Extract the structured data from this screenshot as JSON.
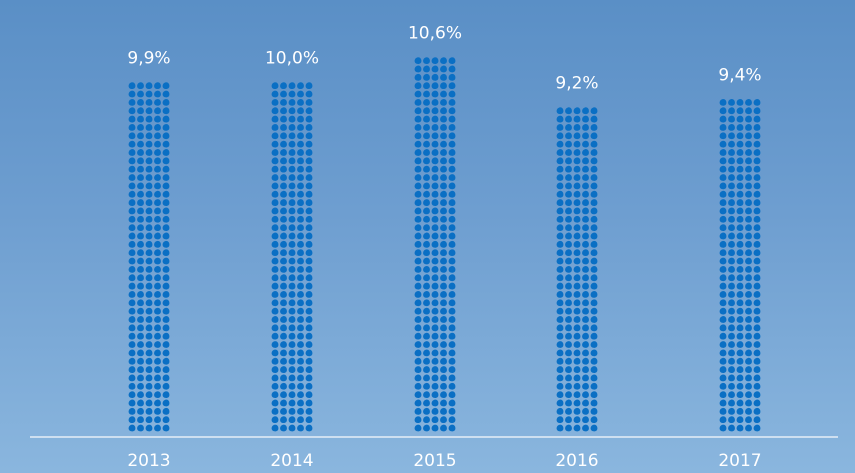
{
  "chart_data": {
    "type": "bar",
    "categories": [
      "2013",
      "2014",
      "2015",
      "2016",
      "2017"
    ],
    "values": [
      9.9,
      10.0,
      10.6,
      9.2,
      9.4
    ],
    "value_labels": [
      "9,9%",
      "10,0%",
      "10,6%",
      "9,2%",
      "9,4%"
    ],
    "title": "",
    "xlabel": "",
    "ylabel": "",
    "grid": false,
    "legend": "none",
    "mark_style": "stacked water-drop icons",
    "colors": {
      "drop": "#0a6fc4",
      "text": "#ffffff",
      "axis": "#e6eef7"
    }
  }
}
